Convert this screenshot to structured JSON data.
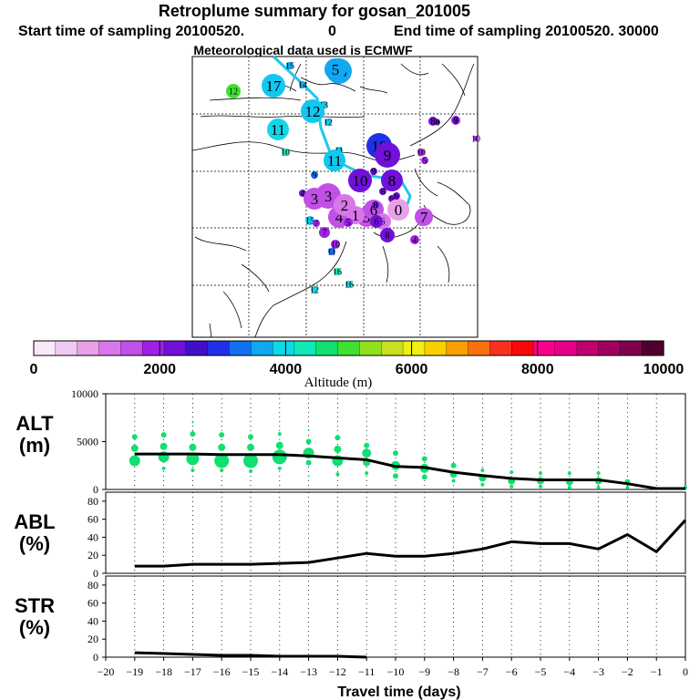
{
  "header": {
    "title": "Retroplume summary for gosan_201005",
    "start_label": "Start time of sampling 20100520.",
    "start_hour": "0",
    "end_label": "End time of sampling 20100520. 30000",
    "met_label": "Meteorological data used is ECMWF"
  },
  "colors": {
    "trajectory": "#1ec8ee",
    "scale": [
      "#f8e8f8",
      "#f0c8f0",
      "#e8a0e8",
      "#d878e8",
      "#c050e8",
      "#a020e8",
      "#7010d8",
      "#4010c8",
      "#2030e8",
      "#1070f0",
      "#10a8f0",
      "#10d8e8",
      "#10e8b8",
      "#10e070",
      "#40e030",
      "#90e020",
      "#c8e020",
      "#f0f010",
      "#f8d000",
      "#f8a000",
      "#f87010",
      "#f83020",
      "#f80808",
      "#f8008c",
      "#e80088",
      "#c00070",
      "#a00060",
      "#800050",
      "#500030"
    ]
  },
  "map": {
    "dots": [
      {
        "label": "16",
        "c": "#10a8f0",
        "r": 14
      },
      {
        "label": "5",
        "c": "#10a8f0",
        "r": 12
      },
      {
        "label": "15",
        "c": "#10a8f0",
        "r": 4
      },
      {
        "label": "14",
        "c": "#10a8f0",
        "r": 4
      },
      {
        "label": "17",
        "c": "#10c8f0",
        "r": 13
      },
      {
        "label": "12",
        "c": "#40e030",
        "r": 8
      },
      {
        "label": "13",
        "c": "#10c8f0",
        "r": 4
      },
      {
        "label": "12",
        "c": "#10c8f0",
        "r": 13
      },
      {
        "label": "12",
        "c": "#10c8f0",
        "r": 4
      },
      {
        "label": "11",
        "c": "#10d8e8",
        "r": 12
      },
      {
        "label": "10",
        "c": "#10e8b8",
        "r": 4
      },
      {
        "label": "11",
        "c": "#10c8f0",
        "r": 4
      },
      {
        "label": "11",
        "c": "#10c8f0",
        "r": 12
      },
      {
        "label": "10",
        "c": "#2030e8",
        "r": 14
      },
      {
        "label": "9",
        "c": "#7010d8",
        "r": 14
      },
      {
        "label": "10",
        "c": "#7010d8",
        "r": 13
      },
      {
        "label": "8",
        "c": "#7010d8",
        "r": 12
      },
      {
        "label": "9",
        "c": "#7010d8",
        "r": 4
      },
      {
        "label": "8",
        "c": "#7010d8",
        "r": 4
      },
      {
        "label": "9",
        "c": "#7010d8",
        "r": 4
      },
      {
        "label": "10",
        "c": "#a020e8",
        "r": 4
      },
      {
        "label": "9",
        "c": "#1070f0",
        "r": 4
      },
      {
        "label": "4",
        "c": "#7010d8",
        "r": 4
      },
      {
        "label": "3",
        "c": "#c050e8",
        "r": 14
      },
      {
        "label": "3",
        "c": "#c050e8",
        "r": 12
      },
      {
        "label": "4",
        "c": "#c050e8",
        "r": 12
      },
      {
        "label": "2",
        "c": "#d878e8",
        "r": 12
      },
      {
        "label": "5",
        "c": "#c050e8",
        "r": 11
      },
      {
        "label": "6",
        "c": "#c050e8",
        "r": 11
      },
      {
        "label": "0",
        "c": "#e8a0e8",
        "r": 12
      },
      {
        "label": "1",
        "c": "#d878e8",
        "r": 10
      },
      {
        "label": "6",
        "c": "#d878e8",
        "r": 9
      },
      {
        "label": "7",
        "c": "#c050e8",
        "r": 10
      },
      {
        "label": "8",
        "c": "#7010d8",
        "r": 8
      },
      {
        "label": "6",
        "c": "#7010d8",
        "r": 7
      },
      {
        "label": "7",
        "c": "#a020e8",
        "r": 6
      },
      {
        "label": "15",
        "c": "#10c8f0",
        "r": 5
      },
      {
        "label": "5",
        "c": "#a020e8",
        "r": 5
      },
      {
        "label": "4",
        "c": "#a020e8",
        "r": 5
      },
      {
        "label": "7",
        "c": "#a020e8",
        "r": 4
      },
      {
        "label": "10",
        "c": "#a020e8",
        "r": 5
      },
      {
        "label": "11",
        "c": "#1070f0",
        "r": 4
      },
      {
        "label": "5",
        "c": "#a020e8",
        "r": 4
      },
      {
        "label": "8",
        "c": "#7010d8",
        "r": 5
      },
      {
        "label": "6",
        "c": "#a020e8",
        "r": 5
      },
      {
        "label": "16",
        "c": "#10e8b8",
        "r": 4
      },
      {
        "label": "16",
        "c": "#10d8e8",
        "r": 4
      },
      {
        "label": "12",
        "c": "#10d8e8",
        "r": 4
      },
      {
        "label": "8",
        "c": "#4010c8",
        "r": 3
      },
      {
        "label": "9",
        "c": "#4010c8",
        "r": 3
      },
      {
        "label": "10",
        "c": "#a020e8",
        "r": 3
      },
      {
        "label": "6",
        "c": "#7010d8",
        "r": 4
      },
      {
        "label": "8",
        "c": "#7010d8",
        "r": 4
      }
    ]
  },
  "colorbar": {
    "tick_labels": [
      "0",
      "2000",
      "4000",
      "6000",
      "8000",
      "10000"
    ],
    "axis_label": "Altitude (m)"
  },
  "chart_data": [
    {
      "type": "line",
      "panel": "ALT",
      "ylabel": "ALT\n(m)",
      "ylabel_line1": "ALT",
      "ylabel_line2": "(m)",
      "ylim": [
        0,
        10000
      ],
      "yticks": [
        "0",
        "5000",
        "10000"
      ],
      "x": [
        -19,
        -18,
        -17,
        -16,
        -15,
        -14,
        -13,
        -12,
        -11,
        -10,
        -9,
        -8,
        -7,
        -6,
        -5,
        -4,
        -3,
        -2,
        -1,
        0
      ],
      "series": [
        {
          "name": "median altitude",
          "values": [
            3700,
            3700,
            3700,
            3650,
            3650,
            3650,
            3500,
            3300,
            3100,
            2400,
            2300,
            1800,
            1450,
            1150,
            1000,
            1000,
            1000,
            600,
            100,
            100
          ]
        }
      ],
      "scatter": [
        {
          "x": -19,
          "y": 5500,
          "s": 3
        },
        {
          "x": -19,
          "y": 4300,
          "s": 4
        },
        {
          "x": -19,
          "y": 3000,
          "s": 6
        },
        {
          "x": -18,
          "y": 5700,
          "s": 3
        },
        {
          "x": -18,
          "y": 4500,
          "s": 4
        },
        {
          "x": -18,
          "y": 3400,
          "s": 6
        },
        {
          "x": -18,
          "y": 2200,
          "s": 2
        },
        {
          "x": -17,
          "y": 7000,
          "s": 1
        },
        {
          "x": -17,
          "y": 5800,
          "s": 3
        },
        {
          "x": -17,
          "y": 4400,
          "s": 4
        },
        {
          "x": -17,
          "y": 3200,
          "s": 7
        },
        {
          "x": -17,
          "y": 2000,
          "s": 2
        },
        {
          "x": -16,
          "y": 5700,
          "s": 3
        },
        {
          "x": -16,
          "y": 4400,
          "s": 4
        },
        {
          "x": -16,
          "y": 3000,
          "s": 8
        },
        {
          "x": -16,
          "y": 2000,
          "s": 2
        },
        {
          "x": -15,
          "y": 5500,
          "s": 3
        },
        {
          "x": -15,
          "y": 4400,
          "s": 4
        },
        {
          "x": -15,
          "y": 3000,
          "s": 8
        },
        {
          "x": -15,
          "y": 1900,
          "s": 2
        },
        {
          "x": -14,
          "y": 5800,
          "s": 2
        },
        {
          "x": -14,
          "y": 4600,
          "s": 4
        },
        {
          "x": -14,
          "y": 3400,
          "s": 8
        },
        {
          "x": -14,
          "y": 2200,
          "s": 2
        },
        {
          "x": -13,
          "y": 6200,
          "s": 1
        },
        {
          "x": -13,
          "y": 5000,
          "s": 3
        },
        {
          "x": -13,
          "y": 3800,
          "s": 6
        },
        {
          "x": -13,
          "y": 2800,
          "s": 3
        },
        {
          "x": -13,
          "y": 1400,
          "s": 1
        },
        {
          "x": -12,
          "y": 5400,
          "s": 3
        },
        {
          "x": -12,
          "y": 4200,
          "s": 4
        },
        {
          "x": -12,
          "y": 3000,
          "s": 6
        },
        {
          "x": -12,
          "y": 1600,
          "s": 2
        },
        {
          "x": -11,
          "y": 4600,
          "s": 3
        },
        {
          "x": -11,
          "y": 3800,
          "s": 5
        },
        {
          "x": -11,
          "y": 2800,
          "s": 4
        },
        {
          "x": -11,
          "y": 1700,
          "s": 2
        },
        {
          "x": -10,
          "y": 3800,
          "s": 3
        },
        {
          "x": -10,
          "y": 2500,
          "s": 5
        },
        {
          "x": -10,
          "y": 1400,
          "s": 3
        },
        {
          "x": -9,
          "y": 3200,
          "s": 3
        },
        {
          "x": -9,
          "y": 2200,
          "s": 5
        },
        {
          "x": -9,
          "y": 1300,
          "s": 3
        },
        {
          "x": -8,
          "y": 2500,
          "s": 3
        },
        {
          "x": -8,
          "y": 1600,
          "s": 4
        },
        {
          "x": -8,
          "y": 900,
          "s": 2
        },
        {
          "x": -7,
          "y": 2000,
          "s": 2
        },
        {
          "x": -7,
          "y": 1200,
          "s": 4
        },
        {
          "x": -7,
          "y": 500,
          "s": 2
        },
        {
          "x": -6,
          "y": 1800,
          "s": 2
        },
        {
          "x": -6,
          "y": 900,
          "s": 4
        },
        {
          "x": -6,
          "y": 300,
          "s": 2
        },
        {
          "x": -5,
          "y": 1700,
          "s": 2
        },
        {
          "x": -5,
          "y": 900,
          "s": 4
        },
        {
          "x": -5,
          "y": 300,
          "s": 2
        },
        {
          "x": -4,
          "y": 1700,
          "s": 2
        },
        {
          "x": -4,
          "y": 800,
          "s": 4
        },
        {
          "x": -4,
          "y": 200,
          "s": 2
        },
        {
          "x": -3,
          "y": 1700,
          "s": 2
        },
        {
          "x": -3,
          "y": 900,
          "s": 4
        },
        {
          "x": -3,
          "y": 200,
          "s": 2
        },
        {
          "x": -2,
          "y": 800,
          "s": 3
        },
        {
          "x": -2,
          "y": 200,
          "s": 2
        },
        {
          "x": 0,
          "y": 200,
          "s": 2
        }
      ]
    },
    {
      "type": "line",
      "panel": "ABL",
      "ylabel_line1": "ABL",
      "ylabel_line2": "(%)",
      "ylim": [
        0,
        90
      ],
      "yticks": [
        "0",
        "20",
        "40",
        "60",
        "80"
      ],
      "x": [
        -19,
        -18,
        -17,
        -16,
        -15,
        -14,
        -13,
        -12,
        -11,
        -10,
        -9,
        -8,
        -7,
        -6,
        -5,
        -4,
        -3,
        -2,
        -1,
        0
      ],
      "series": [
        {
          "name": "ABL fraction",
          "values": [
            8,
            8,
            10,
            10,
            10,
            11,
            12,
            17,
            22,
            19,
            19,
            22,
            27,
            35,
            33,
            33,
            27,
            43,
            24,
            59
          ]
        }
      ]
    },
    {
      "type": "line",
      "panel": "STR",
      "ylabel_line1": "STR",
      "ylabel_line2": "(%)",
      "ylim": [
        0,
        90
      ],
      "yticks": [
        "0",
        "20",
        "40",
        "60",
        "80"
      ],
      "x": [
        -19,
        -18,
        -17,
        -16,
        -15,
        -14,
        -13,
        -12,
        -11
      ],
      "series": [
        {
          "name": "stratospheric fraction",
          "values": [
            5,
            4,
            3,
            2,
            2,
            1,
            1,
            1,
            0
          ]
        }
      ],
      "xlabel": "Travel time (days)",
      "xticks": [
        "−20",
        "−19",
        "−18",
        "−17",
        "−16",
        "−15",
        "−14",
        "−13",
        "−12",
        "−11",
        "−10",
        "−9",
        "−8",
        "−7",
        "−6",
        "−5",
        "−4",
        "−3",
        "−2",
        "−1",
        "0"
      ]
    }
  ]
}
